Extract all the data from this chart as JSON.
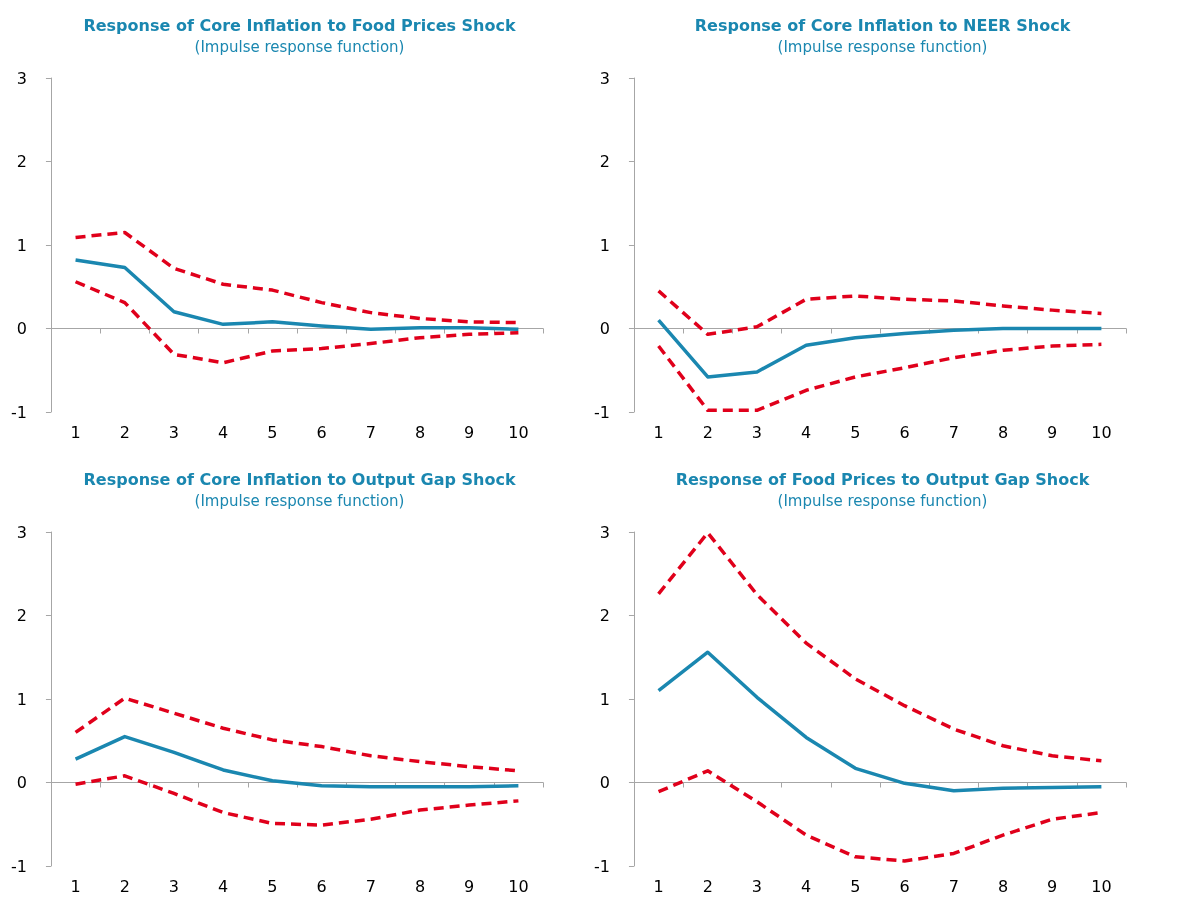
{
  "chart_data": [
    {
      "type": "line",
      "title": "Response of Core Inflation to Food Prices Shock",
      "subtitle": "(Impulse response function)",
      "categories": [
        "1",
        "2",
        "3",
        "4",
        "5",
        "6",
        "7",
        "8",
        "9",
        "10"
      ],
      "ylim": [
        -1,
        3
      ],
      "yticks": [
        -1,
        0,
        1,
        2,
        3
      ],
      "series": [
        {
          "color": "#e0001b",
          "line_style": "dashed",
          "values": [
            1.09,
            1.15,
            0.72,
            0.53,
            0.46,
            0.31,
            0.19,
            0.12,
            0.08,
            0.07
          ]
        },
        {
          "color": "#1a87b0",
          "line_style": "solid",
          "values": [
            0.82,
            0.73,
            0.2,
            0.05,
            0.08,
            0.03,
            -0.01,
            0.01,
            0.01,
            -0.01
          ]
        },
        {
          "color": "#e0001b",
          "line_style": "dashed",
          "values": [
            0.56,
            0.31,
            -0.31,
            -0.41,
            -0.27,
            -0.24,
            -0.18,
            -0.11,
            -0.07,
            -0.05
          ]
        }
      ]
    },
    {
      "type": "line",
      "title": "Response of Core Inflation to NEER Shock",
      "subtitle": "(Impulse response function)",
      "categories": [
        "1",
        "2",
        "3",
        "4",
        "5",
        "6",
        "7",
        "8",
        "9",
        "10"
      ],
      "ylim": [
        -1,
        3
      ],
      "yticks": [
        -1,
        0,
        1,
        2,
        3
      ],
      "series": [
        {
          "color": "#e0001b",
          "line_style": "dashed",
          "values": [
            0.45,
            -0.07,
            0.02,
            0.35,
            0.39,
            0.35,
            0.33,
            0.27,
            0.22,
            0.18
          ]
        },
        {
          "color": "#1a87b0",
          "line_style": "solid",
          "values": [
            0.1,
            -0.58,
            -0.52,
            -0.2,
            -0.11,
            -0.06,
            -0.02,
            0,
            0,
            0
          ]
        },
        {
          "color": "#e0001b",
          "line_style": "dashed",
          "values": [
            -0.21,
            -0.98,
            -0.98,
            -0.74,
            -0.58,
            -0.47,
            -0.35,
            -0.26,
            -0.21,
            -0.19
          ]
        }
      ]
    },
    {
      "type": "line",
      "title": "Response of Core Inflation to Output Gap Shock",
      "subtitle": "(Impulse response function)",
      "categories": [
        "1",
        "2",
        "3",
        "4",
        "5",
        "6",
        "7",
        "8",
        "9",
        "10"
      ],
      "ylim": [
        -1,
        3
      ],
      "yticks": [
        -1,
        0,
        1,
        2,
        3
      ],
      "series": [
        {
          "color": "#e0001b",
          "line_style": "dashed",
          "values": [
            0.6,
            1.01,
            0.83,
            0.65,
            0.51,
            0.43,
            0.32,
            0.25,
            0.19,
            0.14
          ]
        },
        {
          "color": "#1a87b0",
          "line_style": "solid",
          "values": [
            0.28,
            0.55,
            0.36,
            0.15,
            0.02,
            -0.04,
            -0.05,
            -0.05,
            -0.05,
            -0.04
          ]
        },
        {
          "color": "#e0001b",
          "line_style": "dashed",
          "values": [
            -0.02,
            0.08,
            -0.13,
            -0.36,
            -0.49,
            -0.51,
            -0.44,
            -0.33,
            -0.27,
            -0.22
          ]
        }
      ]
    },
    {
      "type": "line",
      "title": "Response of Food Prices to Output Gap Shock",
      "subtitle": "(Impulse response function)",
      "categories": [
        "1",
        "2",
        "3",
        "4",
        "5",
        "6",
        "7",
        "8",
        "9",
        "10"
      ],
      "ylim": [
        -1,
        3
      ],
      "yticks": [
        -1,
        0,
        1,
        2,
        3
      ],
      "series": [
        {
          "color": "#e0001b",
          "line_style": "dashed",
          "values": [
            2.26,
            2.99,
            2.25,
            1.67,
            1.24,
            0.92,
            0.64,
            0.44,
            0.32,
            0.26
          ]
        },
        {
          "color": "#1a87b0",
          "line_style": "solid",
          "values": [
            1.1,
            1.56,
            1.02,
            0.54,
            0.17,
            -0.01,
            -0.1,
            -0.07,
            -0.06,
            -0.05
          ]
        },
        {
          "color": "#e0001b",
          "line_style": "dashed",
          "values": [
            -0.11,
            0.14,
            -0.23,
            -0.63,
            -0.89,
            -0.94,
            -0.85,
            -0.63,
            -0.44,
            -0.36
          ]
        }
      ]
    }
  ]
}
